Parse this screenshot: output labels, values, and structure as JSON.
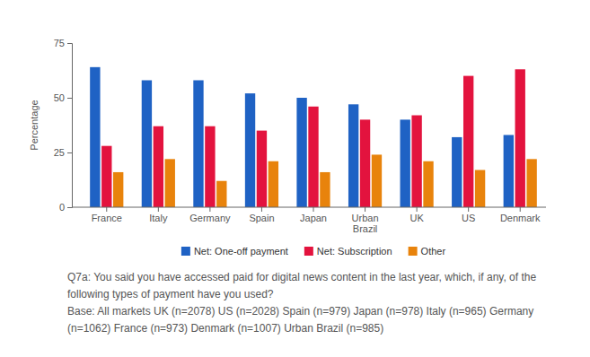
{
  "chart_data": {
    "type": "bar",
    "y_label": "Percentage",
    "categories": [
      "France",
      "Italy",
      "Germany",
      "Spain",
      "Japan",
      "Urban Brazil",
      "UK",
      "US",
      "Denmark"
    ],
    "series": [
      {
        "name": "Net: One-off payment",
        "color": "#1f62c4",
        "values": [
          64,
          58,
          58,
          52,
          50,
          47,
          40,
          32,
          33
        ]
      },
      {
        "name": "Net: Subscription",
        "color": "#e3133e",
        "values": [
          28,
          37,
          37,
          35,
          46,
          40,
          42,
          60,
          63
        ]
      },
      {
        "name": "Other",
        "color": "#e8830c",
        "values": [
          16,
          22,
          12,
          21,
          16,
          24,
          21,
          17,
          22
        ]
      }
    ],
    "ylim": [
      0,
      75
    ],
    "yticks": [
      0,
      25,
      50,
      75
    ],
    "grid": false,
    "legend": "bottom",
    "annotations": [
      "Q7a: You said you have accessed paid for digital news content in the last year, which, if any, of the following types of payment have you used?",
      "Base: All markets UK (n=2078) US (n=2028) Spain (n=979) Japan (n=978) Italy (n=965) Germany (n=1062) France (n=973) Denmark (n=1007) Urban Brazil (n=985)"
    ]
  }
}
